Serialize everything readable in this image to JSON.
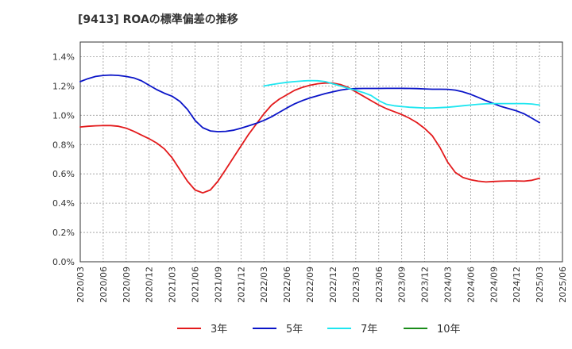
{
  "chart_data": {
    "type": "line",
    "title": "[9413]  ROAの標準偏差の推移",
    "xlabel": "",
    "ylabel": "",
    "ylim": [
      0,
      1.5
    ],
    "y_ticks": [
      "0.0%",
      "0.2%",
      "0.4%",
      "0.6%",
      "0.8%",
      "1.0%",
      "1.2%",
      "1.4%"
    ],
    "x_ticks": [
      "2020/03",
      "2020/06",
      "2020/09",
      "2020/12",
      "2021/03",
      "2021/06",
      "2021/09",
      "2021/12",
      "2022/03",
      "2022/06",
      "2022/09",
      "2022/12",
      "2023/03",
      "2023/06",
      "2023/09",
      "2023/12",
      "2024/03",
      "2024/06",
      "2024/09",
      "2024/12",
      "2025/03",
      "2025/06"
    ],
    "grid": true,
    "legend_position": "bottom",
    "series": [
      {
        "name": "3年",
        "color": "#e31a1c",
        "points": [
          [
            "2020/03",
            0.92
          ],
          [
            "2020/04",
            0.925
          ],
          [
            "2020/05",
            0.928
          ],
          [
            "2020/06",
            0.93
          ],
          [
            "2020/07",
            0.93
          ],
          [
            "2020/08",
            0.925
          ],
          [
            "2020/09",
            0.912
          ],
          [
            "2020/10",
            0.89
          ],
          [
            "2020/11",
            0.865
          ],
          [
            "2020/12",
            0.84
          ],
          [
            "2021/01",
            0.81
          ],
          [
            "2021/02",
            0.77
          ],
          [
            "2021/03",
            0.71
          ],
          [
            "2021/04",
            0.63
          ],
          [
            "2021/05",
            0.55
          ],
          [
            "2021/06",
            0.49
          ],
          [
            "2021/07",
            0.47
          ],
          [
            "2021/08",
            0.49
          ],
          [
            "2021/09",
            0.55
          ],
          [
            "2021/10",
            0.63
          ],
          [
            "2021/11",
            0.71
          ],
          [
            "2021/12",
            0.79
          ],
          [
            "2022/01",
            0.87
          ],
          [
            "2022/02",
            0.94
          ],
          [
            "2022/03",
            1.01
          ],
          [
            "2022/04",
            1.07
          ],
          [
            "2022/05",
            1.11
          ],
          [
            "2022/06",
            1.14
          ],
          [
            "2022/07",
            1.17
          ],
          [
            "2022/08",
            1.19
          ],
          [
            "2022/09",
            1.205
          ],
          [
            "2022/10",
            1.215
          ],
          [
            "2022/11",
            1.22
          ],
          [
            "2022/12",
            1.22
          ],
          [
            "2023/01",
            1.21
          ],
          [
            "2023/02",
            1.19
          ],
          [
            "2023/03",
            1.16
          ],
          [
            "2023/04",
            1.13
          ],
          [
            "2023/05",
            1.1
          ],
          [
            "2023/06",
            1.07
          ],
          [
            "2023/07",
            1.045
          ],
          [
            "2023/08",
            1.025
          ],
          [
            "2023/09",
            1.005
          ],
          [
            "2023/10",
            0.98
          ],
          [
            "2023/11",
            0.95
          ],
          [
            "2023/12",
            0.91
          ],
          [
            "2024/01",
            0.86
          ],
          [
            "2024/02",
            0.78
          ],
          [
            "2024/03",
            0.68
          ],
          [
            "2024/04",
            0.61
          ],
          [
            "2024/05",
            0.575
          ],
          [
            "2024/06",
            0.56
          ],
          [
            "2024/07",
            0.55
          ],
          [
            "2024/08",
            0.545
          ],
          [
            "2024/09",
            0.548
          ],
          [
            "2024/10",
            0.55
          ],
          [
            "2024/11",
            0.552
          ],
          [
            "2024/12",
            0.552
          ],
          [
            "2025/01",
            0.55
          ],
          [
            "2025/02",
            0.556
          ],
          [
            "2025/03",
            0.57
          ]
        ]
      },
      {
        "name": "5年",
        "color": "#0a14c8",
        "points": [
          [
            "2020/03",
            1.23
          ],
          [
            "2020/04",
            1.25
          ],
          [
            "2020/05",
            1.265
          ],
          [
            "2020/06",
            1.272
          ],
          [
            "2020/07",
            1.275
          ],
          [
            "2020/08",
            1.272
          ],
          [
            "2020/09",
            1.265
          ],
          [
            "2020/10",
            1.255
          ],
          [
            "2020/11",
            1.235
          ],
          [
            "2020/12",
            1.205
          ],
          [
            "2021/01",
            1.175
          ],
          [
            "2021/02",
            1.15
          ],
          [
            "2021/03",
            1.13
          ],
          [
            "2021/04",
            1.095
          ],
          [
            "2021/05",
            1.04
          ],
          [
            "2021/06",
            0.965
          ],
          [
            "2021/07",
            0.915
          ],
          [
            "2021/08",
            0.893
          ],
          [
            "2021/09",
            0.888
          ],
          [
            "2021/10",
            0.89
          ],
          [
            "2021/11",
            0.898
          ],
          [
            "2021/12",
            0.912
          ],
          [
            "2022/01",
            0.928
          ],
          [
            "2022/02",
            0.945
          ],
          [
            "2022/03",
            0.965
          ],
          [
            "2022/04",
            0.99
          ],
          [
            "2022/05",
            1.02
          ],
          [
            "2022/06",
            1.05
          ],
          [
            "2022/07",
            1.078
          ],
          [
            "2022/08",
            1.1
          ],
          [
            "2022/09",
            1.118
          ],
          [
            "2022/10",
            1.133
          ],
          [
            "2022/11",
            1.148
          ],
          [
            "2022/12",
            1.16
          ],
          [
            "2023/01",
            1.172
          ],
          [
            "2023/02",
            1.18
          ],
          [
            "2023/03",
            1.182
          ],
          [
            "2023/04",
            1.183
          ],
          [
            "2023/05",
            1.183
          ],
          [
            "2023/06",
            1.183
          ],
          [
            "2023/07",
            1.184
          ],
          [
            "2023/08",
            1.184
          ],
          [
            "2023/09",
            1.184
          ],
          [
            "2023/10",
            1.183
          ],
          [
            "2023/11",
            1.182
          ],
          [
            "2023/12",
            1.18
          ],
          [
            "2024/01",
            1.178
          ],
          [
            "2024/02",
            1.178
          ],
          [
            "2024/03",
            1.177
          ],
          [
            "2024/04",
            1.172
          ],
          [
            "2024/05",
            1.16
          ],
          [
            "2024/06",
            1.143
          ],
          [
            "2024/07",
            1.122
          ],
          [
            "2024/08",
            1.1
          ],
          [
            "2024/09",
            1.08
          ],
          [
            "2024/10",
            1.06
          ],
          [
            "2024/11",
            1.045
          ],
          [
            "2024/12",
            1.03
          ],
          [
            "2025/01",
            1.01
          ],
          [
            "2025/02",
            0.98
          ],
          [
            "2025/03",
            0.95
          ]
        ]
      },
      {
        "name": "7年",
        "color": "#1ee6f0",
        "points": [
          [
            "2022/03",
            1.2
          ],
          [
            "2022/04",
            1.21
          ],
          [
            "2022/05",
            1.218
          ],
          [
            "2022/06",
            1.225
          ],
          [
            "2022/07",
            1.23
          ],
          [
            "2022/08",
            1.234
          ],
          [
            "2022/09",
            1.237
          ],
          [
            "2022/10",
            1.236
          ],
          [
            "2022/11",
            1.23
          ],
          [
            "2022/12",
            1.215
          ],
          [
            "2023/01",
            1.2
          ],
          [
            "2023/02",
            1.185
          ],
          [
            "2023/03",
            1.17
          ],
          [
            "2023/04",
            1.155
          ],
          [
            "2023/05",
            1.135
          ],
          [
            "2023/06",
            1.1
          ],
          [
            "2023/07",
            1.075
          ],
          [
            "2023/08",
            1.065
          ],
          [
            "2023/09",
            1.06
          ],
          [
            "2023/10",
            1.055
          ],
          [
            "2023/11",
            1.052
          ],
          [
            "2023/12",
            1.05
          ],
          [
            "2024/01",
            1.05
          ],
          [
            "2024/02",
            1.052
          ],
          [
            "2024/03",
            1.055
          ],
          [
            "2024/04",
            1.06
          ],
          [
            "2024/05",
            1.065
          ],
          [
            "2024/06",
            1.07
          ],
          [
            "2024/07",
            1.075
          ],
          [
            "2024/08",
            1.078
          ],
          [
            "2024/09",
            1.08
          ],
          [
            "2024/10",
            1.08
          ],
          [
            "2024/11",
            1.08
          ],
          [
            "2024/12",
            1.08
          ],
          [
            "2025/01",
            1.08
          ],
          [
            "2025/02",
            1.077
          ],
          [
            "2025/03",
            1.07
          ]
        ]
      },
      {
        "name": "10年",
        "color": "#1a8c1a",
        "points": []
      }
    ]
  }
}
